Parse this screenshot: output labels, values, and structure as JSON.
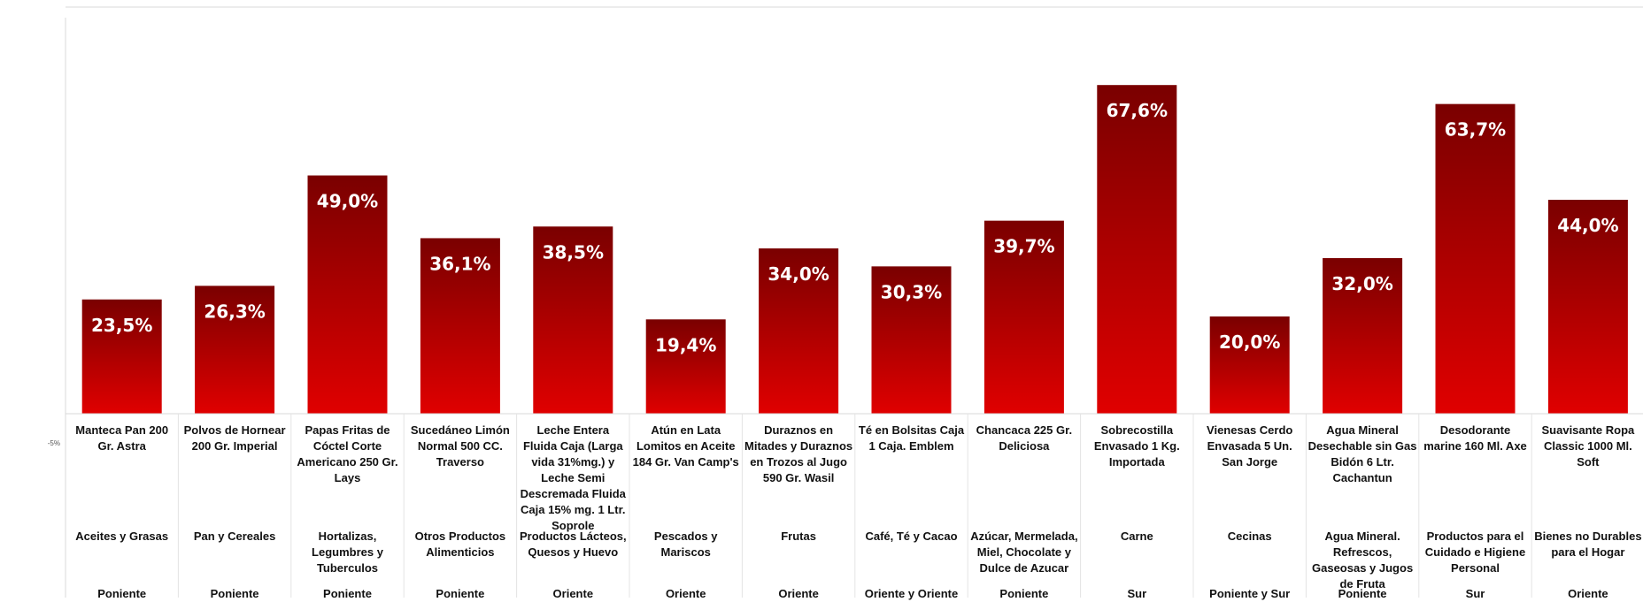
{
  "chart_data": {
    "type": "bar",
    "title": "",
    "xlabel": "",
    "ylabel": "",
    "ylim": [
      -5,
      70
    ],
    "y_ticks": [
      "-5%"
    ],
    "grid": false,
    "legend": "none",
    "bar_color_top": "#7a0000",
    "bar_color_bottom": "#e00000",
    "label_color": "#ffffff",
    "categories": [
      {
        "product": "Manteca Pan 200 Gr. Astra",
        "group": "Aceites y Grasas",
        "zone": "Poniente"
      },
      {
        "product": "Polvos de Hornear 200 Gr. Imperial",
        "group": "Pan y Cereales",
        "zone": "Poniente"
      },
      {
        "product": "Papas Fritas de Cóctel Corte Americano 250 Gr. Lays",
        "group": "Hortalizas, Legumbres y Tuberculos",
        "zone": "Poniente"
      },
      {
        "product": "Sucedáneo Limón Normal 500 CC. Traverso",
        "group": "Otros Productos Alimenticios",
        "zone": "Poniente"
      },
      {
        "product": "Leche Entera Fluida Caja (Larga vida 31%mg.) y Leche Semi Descremada Fluida Caja 15% mg. 1 Ltr. Soprole",
        "group": "Productos Lácteos, Quesos y Huevo",
        "zone": "Oriente"
      },
      {
        "product": "Atún en Lata Lomitos en Aceite 184 Gr. Van Camp's",
        "group": "Pescados y Mariscos",
        "zone": "Oriente"
      },
      {
        "product": "Duraznos en Mitades y Duraznos en Trozos al Jugo 590 Gr. Wasil",
        "group": "Frutas",
        "zone": "Oriente"
      },
      {
        "product": "Té en Bolsitas Caja 1 Caja. Emblem",
        "group": "Café, Té y Cacao",
        "zone": "Oriente y Oriente"
      },
      {
        "product": "Chancaca 225 Gr. Deliciosa",
        "group": "Azúcar, Mermelada, Miel, Chocolate y Dulce de Azucar",
        "zone": "Poniente"
      },
      {
        "product": "Sobrecostilla Envasado 1 Kg. Importada",
        "group": "Carne",
        "zone": "Sur"
      },
      {
        "product": "Vienesas Cerdo Envasada 5 Un. San Jorge",
        "group": "Cecinas",
        "zone": "Poniente y Sur"
      },
      {
        "product": "Agua Mineral Desechable sin Gas Bidón 6 Ltr. Cachantun",
        "group": "Agua Mineral. Refrescos, Gaseosas y Jugos de Fruta",
        "zone": "Poniente"
      },
      {
        "product": "Desodorante marine 160 Ml. Axe",
        "group": "Productos para el Cuidado e Higiene Personal",
        "zone": "Sur"
      },
      {
        "product": "Suavisante Ropa Classic 1000 Ml. Soft",
        "group": "Bienes no Durables para el Hogar",
        "zone": "Oriente"
      }
    ],
    "values": [
      23.5,
      26.3,
      49.0,
      36.1,
      38.5,
      19.4,
      34.0,
      30.3,
      39.7,
      67.6,
      20.0,
      32.0,
      63.7,
      44.0
    ],
    "value_labels": [
      "23,5%",
      "26,3%",
      "49,0%",
      "36,1%",
      "38,5%",
      "19,4%",
      "34,0%",
      "30,3%",
      "39,7%",
      "67,6%",
      "20,0%",
      "32,0%",
      "63,7%",
      "44,0%"
    ]
  }
}
